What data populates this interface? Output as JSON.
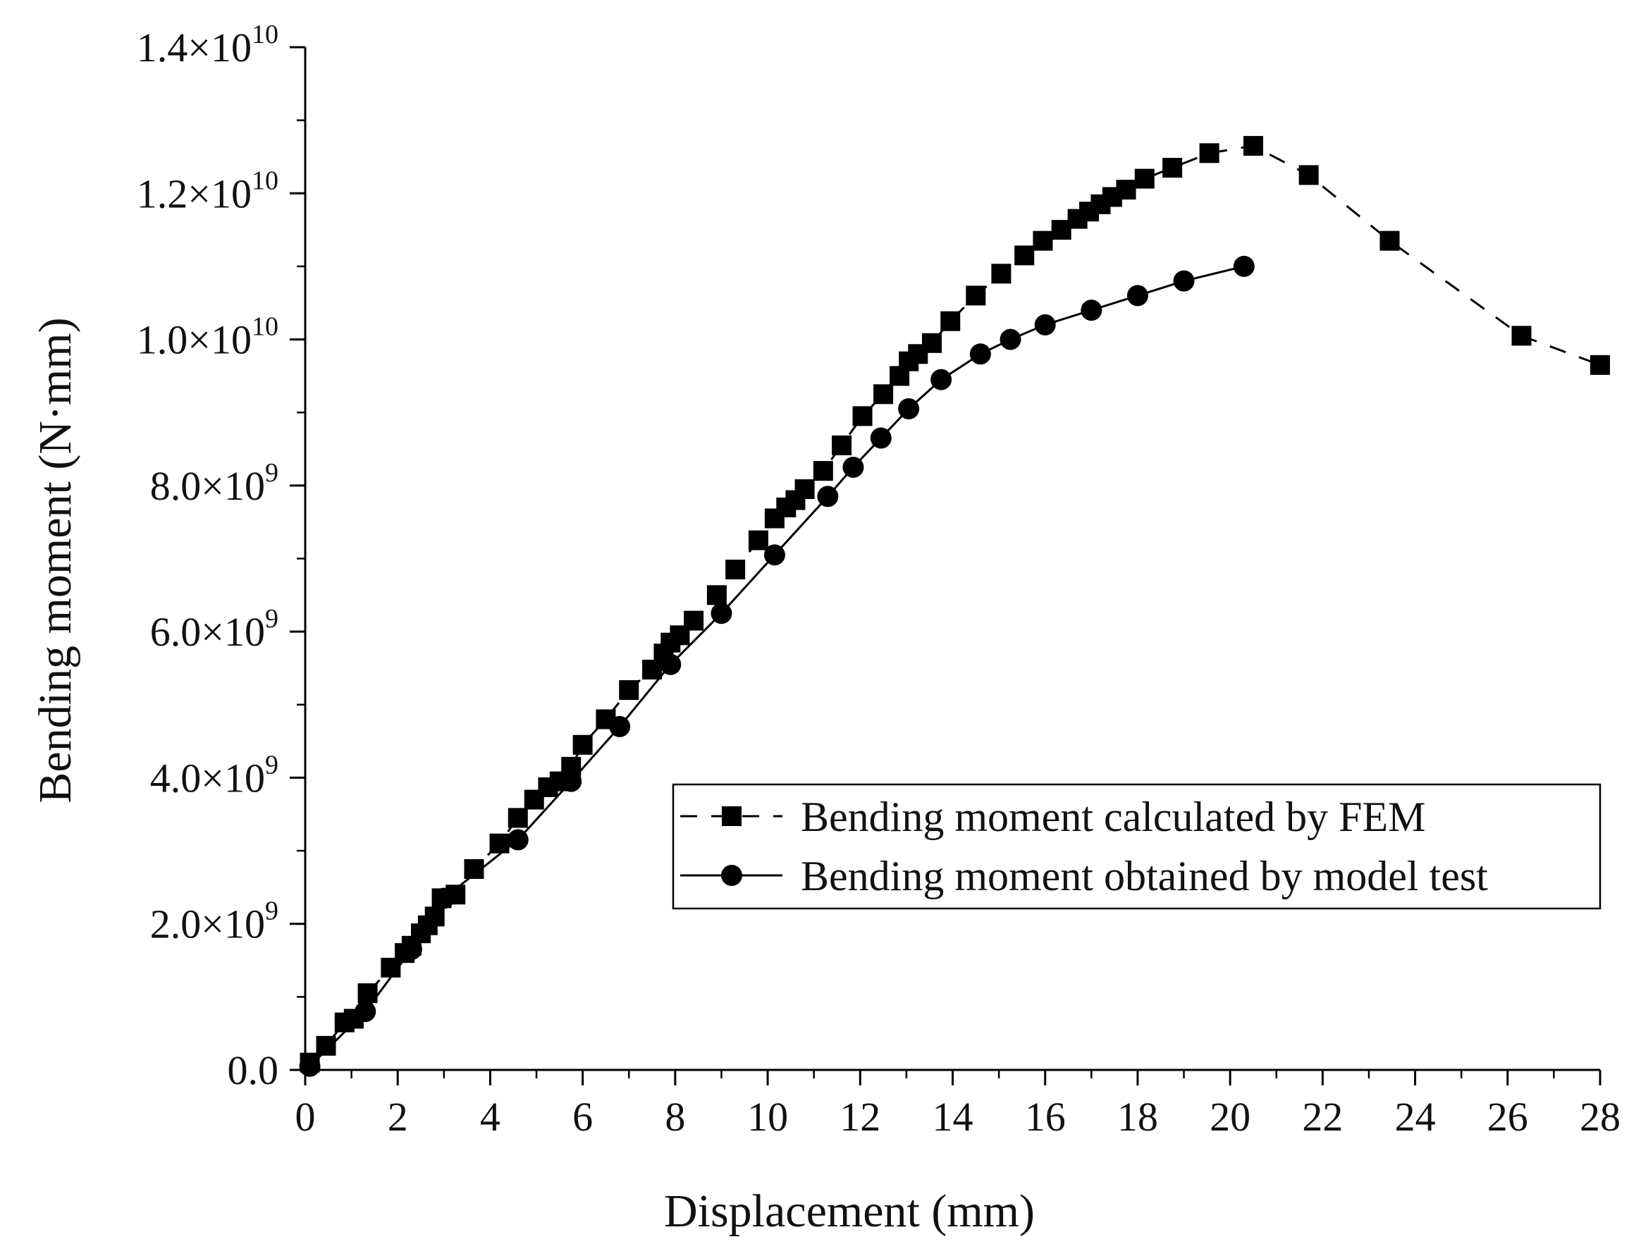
{
  "chart_data": {
    "type": "line",
    "title": "",
    "xlabel": "Displacement (mm)",
    "ylabel": "Bending moment (N·mm)",
    "xlim": [
      0,
      28
    ],
    "ylim": [
      0,
      14000000000
    ],
    "x_ticks": [
      "0",
      "2",
      "4",
      "6",
      "8",
      "10",
      "12",
      "14",
      "16",
      "18",
      "20",
      "22",
      "24",
      "26",
      "28"
    ],
    "y_ticks": [
      {
        "mantissa": "0.0",
        "exp": ""
      },
      {
        "mantissa": "2.0×10",
        "exp": "9"
      },
      {
        "mantissa": "4.0×10",
        "exp": "9"
      },
      {
        "mantissa": "6.0×10",
        "exp": "9"
      },
      {
        "mantissa": "8.0×10",
        "exp": "9"
      },
      {
        "mantissa": "1.0×10",
        "exp": "10"
      },
      {
        "mantissa": "1.2×10",
        "exp": "10"
      },
      {
        "mantissa": "1.4×10",
        "exp": "10"
      }
    ],
    "grid": false,
    "legend_position": "lower-right",
    "series": [
      {
        "name": "Bending moment calculated by FEM",
        "marker": "square",
        "line_style": "dashed",
        "color": "#000000",
        "x": [
          0.1,
          0.45,
          0.85,
          1.05,
          1.35,
          1.85,
          2.15,
          2.3,
          2.5,
          2.65,
          2.8,
          2.95,
          3.25,
          3.65,
          4.2,
          4.6,
          4.95,
          5.25,
          5.5,
          5.75,
          6.0,
          6.5,
          7.0,
          7.5,
          7.75,
          7.9,
          8.1,
          8.4,
          8.9,
          9.3,
          9.8,
          10.15,
          10.4,
          10.6,
          10.8,
          11.2,
          11.6,
          12.05,
          12.5,
          12.85,
          13.05,
          13.25,
          13.55,
          13.95,
          14.5,
          15.05,
          15.55,
          15.95,
          16.35,
          16.7,
          16.95,
          17.2,
          17.45,
          17.75,
          18.15,
          18.75,
          19.55,
          20.5,
          21.7,
          23.45,
          26.3,
          28.0
        ],
        "y": [
          100000000,
          330000000,
          650000000,
          700000000,
          1050000000,
          1400000000,
          1600000000,
          1700000000,
          1870000000,
          1980000000,
          2100000000,
          2350000000,
          2400000000,
          2750000000,
          3100000000,
          3450000000,
          3700000000,
          3870000000,
          3950000000,
          4150000000,
          4450000000,
          4800000000,
          5200000000,
          5480000000,
          5700000000,
          5850000000,
          5950000000,
          6150000000,
          6500000000,
          6850000000,
          7250000000,
          7550000000,
          7700000000,
          7800000000,
          7950000000,
          8200000000,
          8550000000,
          8950000000,
          9250000000,
          9500000000,
          9700000000,
          9800000000,
          9950000000,
          10250000000,
          10600000000,
          10900000000,
          11150000000,
          11350000000,
          11500000000,
          11650000000,
          11750000000,
          11850000000,
          11950000000,
          12050000000,
          12200000000,
          12350000000,
          12550000000,
          12650000000,
          12250000000,
          11350000000,
          10050000000,
          9650000000
        ]
      },
      {
        "name": "Bending moment obtained by model test",
        "marker": "circle",
        "line_style": "solid",
        "color": "#000000",
        "x": [
          0.1,
          1.3,
          2.3,
          3.0,
          4.6,
          5.75,
          6.8,
          7.9,
          9.0,
          10.15,
          11.3,
          11.85,
          12.45,
          13.05,
          13.75,
          14.6,
          15.25,
          16.0,
          17.0,
          18.0,
          19.0,
          20.3
        ],
        "y": [
          50000000,
          800000000,
          1650000000,
          2350000000,
          3150000000,
          3950000000,
          4700000000,
          5550000000,
          6250000000,
          7050000000,
          7850000000,
          8250000000,
          8650000000,
          9050000000,
          9450000000,
          9800000000,
          10000000000,
          10200000000,
          10400000000,
          10600000000,
          10800000000,
          11000000000
        ]
      }
    ]
  }
}
